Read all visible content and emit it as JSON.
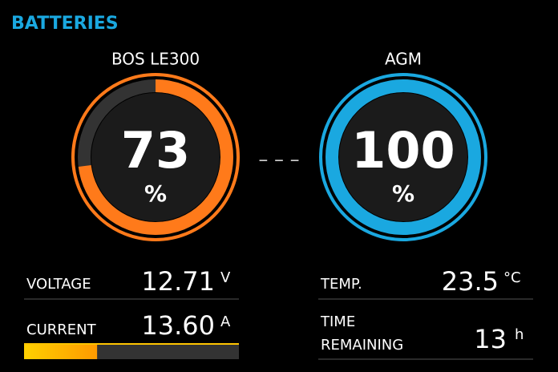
{
  "header": {
    "title": "BATTERIES"
  },
  "gauges": [
    {
      "name": "BOS LE300",
      "value": 73,
      "unit": "%",
      "color": "#ff7a1a"
    },
    {
      "name": "AGM",
      "value": 100,
      "unit": "%",
      "color": "#1aa8e0"
    }
  ],
  "separator": "– – –",
  "stats": {
    "voltage": {
      "label": "VOLTAGE",
      "value": "12.71",
      "unit": "V"
    },
    "current": {
      "label": "CURRENT",
      "value": "13.60",
      "unit": "A",
      "bar_percent": 34
    },
    "temp": {
      "label": "TEMP.",
      "value": "23.5",
      "unit": "°C"
    },
    "time_remaining": {
      "label_lines": [
        "TIME",
        "REMAINING"
      ],
      "value": "13",
      "unit": "h"
    }
  }
}
